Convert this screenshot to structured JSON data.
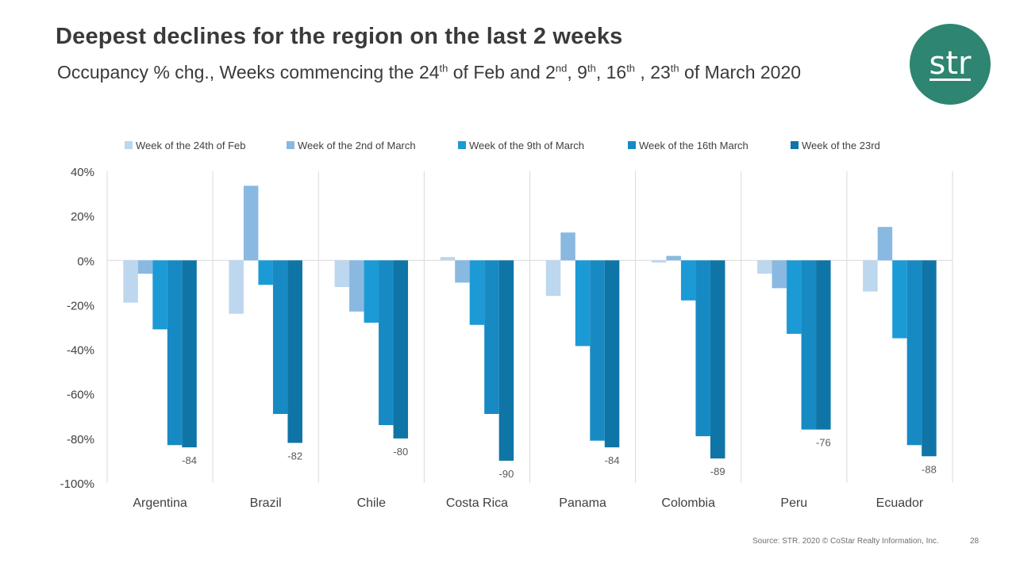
{
  "slide": {
    "title": "Deepest declines for the region on the last 2 weeks",
    "subtitle_parts": {
      "p1": "Occupancy % chg., Weeks commencing the 24",
      "s1": "th",
      "p2": " of Feb and 2",
      "s2": "nd",
      "p3": ", 9",
      "s3": "th",
      "p4": ", 16",
      "s4": "th",
      "p5": " , 23",
      "s5": "th",
      "p6": " of March 2020"
    },
    "logo_text": "str",
    "source": "Source: STR. 2020 © CoStar Realty Information, Inc.",
    "page_number": "28"
  },
  "colors": {
    "series": [
      "#bdd7ee",
      "#89b9e1",
      "#1c9ad6",
      "#178ac4",
      "#0f75a6"
    ],
    "grid": "#d9d9d9",
    "axis_text": "#404040",
    "label_text": "#595959"
  },
  "chart_data": {
    "type": "bar",
    "title": "",
    "xlabel": "",
    "ylabel": "",
    "ylim": [
      -100,
      40
    ],
    "yticks": [
      40,
      20,
      0,
      -20,
      -40,
      -60,
      -80,
      -100
    ],
    "ytick_labels": [
      "40%",
      "20%",
      "0%",
      "-20%",
      "-40%",
      "-60%",
      "-80%",
      "-100%"
    ],
    "legend_position": "top",
    "categories": [
      "Argentina",
      "Brazil",
      "Chile",
      "Costa Rica",
      "Panama",
      "Colombia",
      "Peru",
      "Ecuador"
    ],
    "series": [
      {
        "name": "Week of the 24th of Feb",
        "values": [
          -19,
          -24,
          -12,
          1.5,
          -16,
          -1,
          -6,
          -14
        ]
      },
      {
        "name": "Week of the 2nd of March",
        "values": [
          -6,
          33.5,
          -23,
          -10,
          12.5,
          2,
          -12.5,
          15
        ]
      },
      {
        "name": "Week of the 9th of March",
        "values": [
          -31,
          -11,
          -28,
          -29,
          -38.5,
          -18,
          -33,
          -35
        ]
      },
      {
        "name": "Week of the 16th March",
        "values": [
          -83,
          -69,
          -74,
          -69,
          -81,
          -79,
          -76,
          -83
        ]
      },
      {
        "name": "Week of the 23rd",
        "values": [
          -84,
          -82,
          -80,
          -90,
          -84,
          -89,
          -76,
          -88
        ]
      }
    ],
    "data_labels": [
      "-84",
      "-82",
      "-80",
      "-90",
      "-84",
      "-89",
      "-76",
      "-88"
    ]
  }
}
